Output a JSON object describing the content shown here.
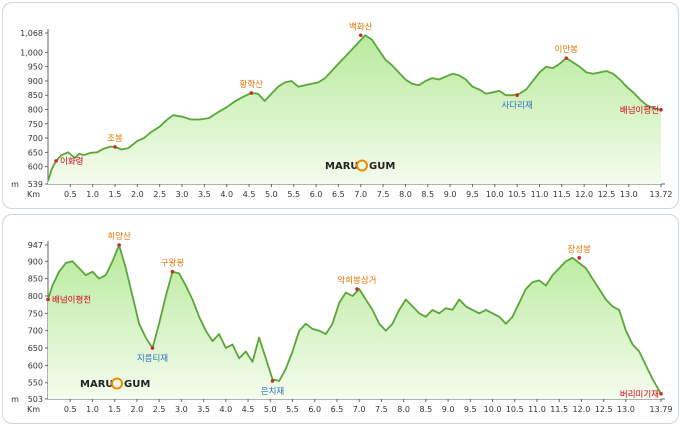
{
  "colors": {
    "fill_top": "#b8ea9c",
    "fill_bottom": "#f4fcee",
    "line": "#5aa63a",
    "peak_label": "#e07400",
    "pass_label": "#2f6fbf",
    "end_label": "#d8001a",
    "marker": "#cc2a2a",
    "axis": "#666666"
  },
  "logo_panel1": {
    "part1": "MARU",
    "part2": "GUM"
  },
  "logo_panel2": {
    "part1": "MARU",
    "part2": "GUM"
  },
  "chart_data": [
    {
      "type": "area",
      "xlabel": "Km",
      "ylabel": "m",
      "xlim": [
        0,
        13.72
      ],
      "ylim": [
        539,
        1068
      ],
      "x_ticks": [
        "0.5",
        "1.0",
        "1.5",
        "2.0",
        "2.5",
        "3.0",
        "3.5",
        "4.0",
        "4.5",
        "5.0",
        "5.5",
        "6.0",
        "6.5",
        "7.0",
        "7.5",
        "8.0",
        "8.5",
        "9.0",
        "9.5",
        "10.0",
        "10.5",
        "11.0",
        "11.5",
        "12.0",
        "12.5",
        "13.0",
        "13.72"
      ],
      "y_ticks": [
        "539",
        "600",
        "650",
        "700",
        "750",
        "800",
        "850",
        "900",
        "950",
        "1,000",
        "1,068"
      ],
      "x": [
        0,
        0.08,
        0.18,
        0.3,
        0.45,
        0.6,
        0.7,
        0.8,
        0.95,
        1.1,
        1.25,
        1.4,
        1.5,
        1.65,
        1.8,
        2.0,
        2.15,
        2.3,
        2.5,
        2.65,
        2.8,
        3.0,
        3.2,
        3.4,
        3.6,
        3.8,
        4.0,
        4.2,
        4.35,
        4.55,
        4.7,
        4.85,
        5.0,
        5.15,
        5.3,
        5.45,
        5.6,
        5.75,
        5.9,
        6.05,
        6.2,
        6.35,
        6.5,
        6.65,
        6.8,
        6.95,
        7.1,
        7.25,
        7.4,
        7.55,
        7.7,
        7.85,
        8.0,
        8.15,
        8.3,
        8.45,
        8.6,
        8.75,
        8.9,
        9.05,
        9.2,
        9.35,
        9.5,
        9.65,
        9.8,
        9.95,
        10.1,
        10.25,
        10.4,
        10.55,
        10.7,
        10.85,
        11.0,
        11.15,
        11.3,
        11.45,
        11.6,
        11.75,
        11.9,
        12.05,
        12.2,
        12.35,
        12.5,
        12.65,
        12.8,
        12.95,
        13.1,
        13.25,
        13.4,
        13.55,
        13.72
      ],
      "values": [
        549,
        590,
        620,
        640,
        650,
        630,
        645,
        640,
        648,
        650,
        663,
        670,
        669,
        660,
        665,
        690,
        700,
        720,
        740,
        762,
        780,
        775,
        765,
        765,
        770,
        790,
        808,
        830,
        843,
        858,
        855,
        830,
        855,
        880,
        895,
        900,
        880,
        885,
        890,
        895,
        910,
        935,
        960,
        985,
        1010,
        1035,
        1060,
        1045,
        1010,
        975,
        955,
        930,
        905,
        890,
        885,
        900,
        910,
        905,
        915,
        925,
        920,
        905,
        880,
        870,
        855,
        860,
        865,
        850,
        850,
        855,
        870,
        900,
        930,
        950,
        945,
        960,
        980,
        965,
        950,
        930,
        925,
        930,
        935,
        925,
        905,
        880,
        860,
        835,
        815,
        805,
        799
      ],
      "peaks": [
        {
          "name": "이화령",
          "x": 0.18,
          "y": 620,
          "kind": "end"
        },
        {
          "name": "조봉",
          "x": 1.5,
          "y": 669,
          "kind": "peak"
        },
        {
          "name": "황학산",
          "x": 4.55,
          "y": 858,
          "kind": "peak"
        },
        {
          "name": "백화산",
          "x": 7.0,
          "y": 1060,
          "kind": "peak"
        },
        {
          "name": "사다리재",
          "x": 10.5,
          "y": 850,
          "kind": "pass"
        },
        {
          "name": "이만봉",
          "x": 11.6,
          "y": 980,
          "kind": "peak"
        },
        {
          "name": "배넘이평전",
          "x": 13.72,
          "y": 799,
          "kind": "end"
        }
      ]
    },
    {
      "type": "area",
      "xlabel": "Km",
      "ylabel": "m",
      "xlim": [
        0,
        13.79
      ],
      "ylim": [
        503,
        947
      ],
      "x_ticks": [
        "0.5",
        "1.0",
        "1.5",
        "2.0",
        "2.5",
        "3.0",
        "3.5",
        "4.0",
        "4.5",
        "5.0",
        "5.5",
        "6.0",
        "6.5",
        "7.0",
        "7.5",
        "8.0",
        "8.5",
        "9.0",
        "9.5",
        "10.0",
        "10.5",
        "11.0",
        "11.5",
        "12.0",
        "12.5",
        "13.0",
        "13.79"
      ],
      "y_ticks": [
        "503",
        "550",
        "600",
        "650",
        "700",
        "750",
        "800",
        "850",
        "900",
        "947"
      ],
      "x": [
        0,
        0.1,
        0.25,
        0.4,
        0.55,
        0.7,
        0.85,
        1.0,
        1.15,
        1.3,
        1.45,
        1.6,
        1.75,
        1.9,
        2.05,
        2.2,
        2.35,
        2.5,
        2.65,
        2.8,
        2.95,
        3.1,
        3.25,
        3.4,
        3.55,
        3.7,
        3.85,
        4.0,
        4.15,
        4.3,
        4.45,
        4.6,
        4.75,
        4.9,
        5.05,
        5.2,
        5.35,
        5.5,
        5.65,
        5.8,
        5.95,
        6.1,
        6.25,
        6.4,
        6.55,
        6.7,
        6.85,
        7.0,
        7.15,
        7.3,
        7.45,
        7.6,
        7.75,
        7.9,
        8.05,
        8.2,
        8.35,
        8.5,
        8.65,
        8.8,
        8.95,
        9.1,
        9.25,
        9.4,
        9.55,
        9.7,
        9.85,
        10.0,
        10.15,
        10.3,
        10.45,
        10.6,
        10.75,
        10.9,
        11.05,
        11.2,
        11.35,
        11.5,
        11.65,
        11.8,
        11.95,
        12.1,
        12.25,
        12.4,
        12.55,
        12.7,
        12.85,
        13.0,
        13.15,
        13.3,
        13.45,
        13.6,
        13.79
      ],
      "values": [
        790,
        830,
        870,
        895,
        900,
        880,
        860,
        870,
        850,
        860,
        900,
        947,
        880,
        800,
        720,
        680,
        650,
        720,
        800,
        870,
        865,
        830,
        790,
        740,
        700,
        670,
        690,
        650,
        660,
        620,
        640,
        610,
        680,
        620,
        560,
        555,
        590,
        640,
        700,
        720,
        705,
        700,
        690,
        720,
        780,
        810,
        800,
        820,
        790,
        760,
        720,
        700,
        720,
        760,
        790,
        770,
        750,
        740,
        760,
        750,
        765,
        760,
        790,
        770,
        760,
        750,
        760,
        750,
        740,
        720,
        740,
        780,
        820,
        840,
        845,
        830,
        860,
        880,
        900,
        910,
        895,
        880,
        850,
        820,
        790,
        770,
        760,
        700,
        660,
        640,
        600,
        560,
        518
      ],
      "peaks": [
        {
          "name": "배넘이평전",
          "x": 0.0,
          "y": 790,
          "kind": "end"
        },
        {
          "name": "희양산",
          "x": 1.6,
          "y": 947,
          "kind": "peak"
        },
        {
          "name": "지름티재",
          "x": 2.35,
          "y": 650,
          "kind": "pass"
        },
        {
          "name": "구왕봉",
          "x": 2.8,
          "y": 870,
          "kind": "peak"
        },
        {
          "name": "은치재",
          "x": 5.05,
          "y": 555,
          "kind": "pass"
        },
        {
          "name": "악희봉삼거",
          "x": 6.95,
          "y": 820,
          "kind": "peak"
        },
        {
          "name": "장성봉",
          "x": 11.95,
          "y": 910,
          "kind": "peak"
        },
        {
          "name": "버리미기재",
          "x": 13.79,
          "y": 518,
          "kind": "end"
        }
      ]
    }
  ]
}
